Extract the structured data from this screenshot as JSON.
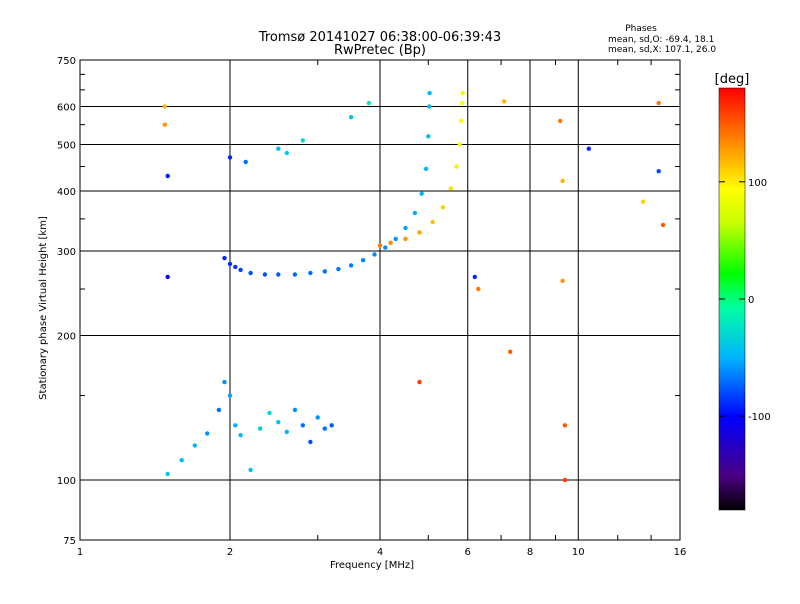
{
  "chart_data": {
    "type": "scatter",
    "title": "Tromsø 20141027 06:38:00-06:39:43",
    "subtitle": "RwPretec (Bp)",
    "stats": {
      "heading": "Phases",
      "line1": "mean, sd,O: -69.4, 18.1",
      "line2": "mean, sd,X: 107.1, 26.0"
    },
    "xlabel": "Frequency [MHz]",
    "ylabel": "Stationary phase Virtual Height [km]",
    "x_scale": "log",
    "y_scale": "log",
    "xlim": [
      1,
      16
    ],
    "ylim": [
      75,
      750
    ],
    "x_ticks": [
      1,
      2,
      4,
      6,
      8,
      10,
      16
    ],
    "x_tick_labels": [
      "1",
      "2",
      "4",
      "6",
      "8",
      "10",
      "16"
    ],
    "y_ticks": [
      75,
      100,
      200,
      300,
      400,
      500,
      600,
      750
    ],
    "y_tick_labels": [
      "75",
      "100",
      "200",
      "300",
      "400",
      "500",
      "600",
      "750"
    ],
    "grid": true,
    "colorbar": {
      "label": "[deg]",
      "range": [
        -180,
        180
      ],
      "ticks": [
        100,
        0,
        -100
      ],
      "tick_labels": [
        "100",
        "0",
        "-100"
      ],
      "colormap": "rainbow"
    },
    "series": [
      {
        "key": "F-region O trace",
        "x": [
          1.95,
          2.0,
          2.05,
          2.1,
          2.2,
          2.35,
          2.5,
          2.7,
          2.9,
          3.1,
          3.3,
          3.5,
          3.7,
          3.9,
          4.1,
          4.3,
          4.5,
          4.7,
          4.85,
          4.95,
          5.0,
          5.02,
          5.03
        ],
        "y": [
          290,
          282,
          278,
          274,
          270,
          268,
          268,
          268,
          270,
          272,
          275,
          280,
          287,
          295,
          305,
          318,
          335,
          360,
          395,
          445,
          520,
          600,
          640
        ],
        "phase": [
          -90,
          -88,
          -85,
          -82,
          -80,
          -78,
          -75,
          -72,
          -70,
          -70,
          -68,
          -66,
          -65,
          -62,
          -60,
          -58,
          -55,
          -52,
          -50,
          -48,
          -45,
          -45,
          -46
        ]
      },
      {
        "key": "F-region X trace",
        "x": [
          4.0,
          4.2,
          4.5,
          4.8,
          5.1,
          5.35,
          5.55,
          5.7,
          5.78,
          5.82,
          5.85,
          5.86
        ],
        "y": [
          308,
          312,
          318,
          328,
          345,
          370,
          405,
          450,
          500,
          560,
          610,
          640
        ],
        "phase": [
          140,
          135,
          130,
          125,
          115,
          110,
          105,
          100,
          95,
          90,
          88,
          85
        ]
      },
      {
        "key": "E-region echoes",
        "x": [
          1.5,
          1.6,
          1.7,
          1.8,
          1.9,
          1.95,
          2.0,
          2.05,
          2.1,
          2.2,
          2.3,
          2.4,
          2.5,
          2.6,
          2.7,
          2.8,
          2.9,
          3.0,
          3.1,
          3.2
        ],
        "y": [
          103,
          110,
          118,
          125,
          140,
          160,
          150,
          130,
          124,
          105,
          128,
          138,
          132,
          126,
          140,
          130,
          120,
          135,
          128,
          130
        ],
        "phase": [
          -40,
          -45,
          -50,
          -60,
          -70,
          -60,
          -55,
          -50,
          -45,
          -40,
          -35,
          -30,
          -40,
          -50,
          -60,
          -70,
          -80,
          -60,
          -70,
          -75
        ]
      },
      {
        "key": "scattered echoes",
        "x": [
          1.48,
          1.48,
          1.5,
          1.5,
          2.0,
          2.15,
          2.5,
          2.6,
          2.8,
          3.5,
          3.8,
          4.8,
          6.2,
          6.3,
          7.1,
          7.3,
          9.2,
          9.3,
          9.3,
          9.4,
          9.4,
          10.5,
          13.5,
          14.5,
          14.5,
          14.8
        ],
        "y": [
          600,
          550,
          430,
          265,
          470,
          460,
          490,
          480,
          510,
          570,
          610,
          160,
          265,
          250,
          615,
          185,
          560,
          420,
          260,
          130,
          100,
          490,
          380,
          610,
          440,
          340
        ],
        "phase": [
          120,
          130,
          -100,
          -110,
          -90,
          -70,
          -50,
          -40,
          -30,
          -40,
          -20,
          160,
          -90,
          140,
          120,
          150,
          140,
          120,
          130,
          150,
          160,
          -90,
          110,
          140,
          -80,
          150
        ]
      }
    ]
  }
}
